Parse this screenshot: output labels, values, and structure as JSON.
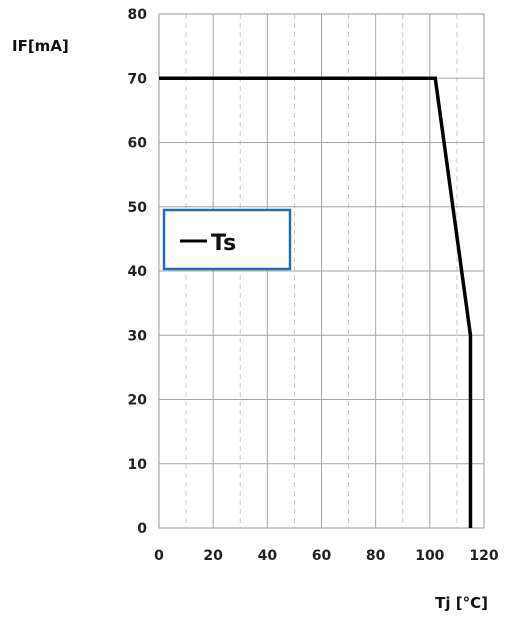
{
  "chart_data": {
    "type": "line",
    "xlabel": "Tj [°C]",
    "ylabel": "IF[mA]",
    "xlim": [
      0,
      120
    ],
    "ylim": [
      0,
      80
    ],
    "x_ticks": [
      0,
      20,
      40,
      60,
      80,
      100,
      120
    ],
    "y_ticks": [
      0,
      10,
      20,
      30,
      40,
      50,
      60,
      70,
      80
    ],
    "grid": {
      "major_solid": true,
      "minor_dashed": true,
      "minor_step_x": 10
    },
    "legend": {
      "placement": "middle-left",
      "border_color": "#1f6fb2"
    },
    "series": [
      {
        "name": "Ts",
        "color": "#000000",
        "x": [
          0,
          102,
          115,
          115
        ],
        "y": [
          70,
          70,
          30,
          0
        ]
      }
    ]
  }
}
